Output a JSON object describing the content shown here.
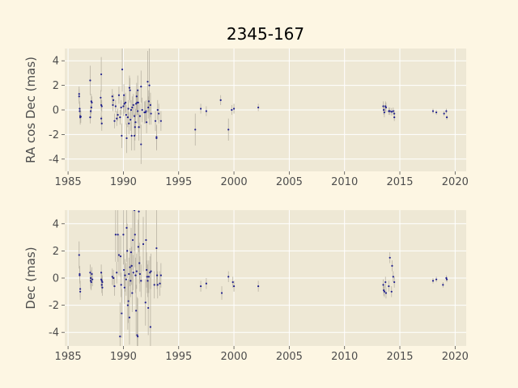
{
  "title": "2345-167",
  "colors": {
    "figure_bg": "#fdf6e3",
    "axes_bg": "#eee8d5",
    "grid": "#ffffff",
    "marker": "#1f1f8c",
    "errorbar": "#b9b3a4",
    "tick_text": "#4d4d4d"
  },
  "chart_data": [
    {
      "type": "scatter",
      "ylabel": "RA cos Dec (mas)",
      "xlim": [
        1984.7,
        2021
      ],
      "ylim": [
        -5,
        5
      ],
      "xticks": [
        "1985",
        "1990",
        "1995",
        "2000",
        "2005",
        "2010",
        "2015",
        "2020"
      ],
      "yticks": [
        "4",
        "2",
        "0",
        "-2",
        "-4"
      ],
      "grid": true,
      "errorbars": true,
      "points": [
        {
          "x": 1986.0,
          "y": 1.3,
          "err": 0.6
        },
        {
          "x": 1986.0,
          "y": 1.1,
          "err": 0.6
        },
        {
          "x": 1986.05,
          "y": 0.1,
          "err": 0.6
        },
        {
          "x": 1986.05,
          "y": -0.1,
          "err": 0.6
        },
        {
          "x": 1986.1,
          "y": -0.5,
          "err": 0.6
        },
        {
          "x": 1986.1,
          "y": -0.6,
          "err": 0.6
        },
        {
          "x": 1986.15,
          "y": -0.55,
          "err": 0.5
        },
        {
          "x": 1987.0,
          "y": 2.4,
          "err": 1.2
        },
        {
          "x": 1987.1,
          "y": 0.7,
          "err": 0.6
        },
        {
          "x": 1987.15,
          "y": 0.6,
          "err": 0.5
        },
        {
          "x": 1987.1,
          "y": 0.2,
          "err": 0.5
        },
        {
          "x": 1987.05,
          "y": -0.1,
          "err": 0.5
        },
        {
          "x": 1987.0,
          "y": -0.6,
          "err": 0.5
        },
        {
          "x": 1988.0,
          "y": 2.9,
          "err": 1.4
        },
        {
          "x": 1987.95,
          "y": 1.0,
          "err": 0.6
        },
        {
          "x": 1988.0,
          "y": 0.4,
          "err": 0.5
        },
        {
          "x": 1988.05,
          "y": 0.3,
          "err": 0.5
        },
        {
          "x": 1988.0,
          "y": -0.7,
          "err": 0.5
        },
        {
          "x": 1988.05,
          "y": -1.1,
          "err": 0.6
        },
        {
          "x": 1989.0,
          "y": 1.1,
          "err": 0.6
        },
        {
          "x": 1989.05,
          "y": 0.4,
          "err": 0.5
        },
        {
          "x": 1989.1,
          "y": 0.8,
          "err": 0.5
        },
        {
          "x": 1989.2,
          "y": -0.9,
          "err": 0.6
        },
        {
          "x": 1989.3,
          "y": 0.3,
          "err": 0.5
        },
        {
          "x": 1989.4,
          "y": -0.7,
          "err": 0.6
        },
        {
          "x": 1989.5,
          "y": -0.4,
          "err": 0.5
        },
        {
          "x": 1989.6,
          "y": 1.2,
          "err": 0.7
        },
        {
          "x": 1989.7,
          "y": -0.6,
          "err": 0.6
        },
        {
          "x": 1989.8,
          "y": 0.2,
          "err": 0.6
        },
        {
          "x": 1989.85,
          "y": -2.1,
          "err": 1.0
        },
        {
          "x": 1989.9,
          "y": 3.3,
          "err": 1.8
        },
        {
          "x": 1990.0,
          "y": 0.3,
          "err": 0.8
        },
        {
          "x": 1990.05,
          "y": 1.2,
          "err": 0.9
        },
        {
          "x": 1990.1,
          "y": 0.5,
          "err": 0.8
        },
        {
          "x": 1990.2,
          "y": 0.6,
          "err": 0.8
        },
        {
          "x": 1990.25,
          "y": -0.4,
          "err": 0.8
        },
        {
          "x": 1990.3,
          "y": -2.3,
          "err": 1.2
        },
        {
          "x": 1990.4,
          "y": -0.6,
          "err": 0.8
        },
        {
          "x": 1990.45,
          "y": 0.1,
          "err": 0.7
        },
        {
          "x": 1990.5,
          "y": -1.1,
          "err": 0.9
        },
        {
          "x": 1990.55,
          "y": 1.8,
          "err": 1.0
        },
        {
          "x": 1990.6,
          "y": 1.6,
          "err": 1.0
        },
        {
          "x": 1990.65,
          "y": -0.8,
          "err": 0.9
        },
        {
          "x": 1990.7,
          "y": 0.0,
          "err": 0.8
        },
        {
          "x": 1990.75,
          "y": -2.1,
          "err": 1.2
        },
        {
          "x": 1990.8,
          "y": 0.2,
          "err": 0.9
        },
        {
          "x": 1990.9,
          "y": 0.4,
          "err": 0.9
        },
        {
          "x": 1991.0,
          "y": -0.5,
          "err": 1.0
        },
        {
          "x": 1991.0,
          "y": -2.1,
          "err": 1.2
        },
        {
          "x": 1991.05,
          "y": -1.4,
          "err": 1.1
        },
        {
          "x": 1991.1,
          "y": -1.0,
          "err": 1.1
        },
        {
          "x": 1991.15,
          "y": 0.5,
          "err": 1.0
        },
        {
          "x": 1991.2,
          "y": 1.1,
          "err": 1.1
        },
        {
          "x": 1991.25,
          "y": 0.6,
          "err": 1.0
        },
        {
          "x": 1991.3,
          "y": 1.6,
          "err": 1.2
        },
        {
          "x": 1991.3,
          "y": -0.1,
          "err": 1.0
        },
        {
          "x": 1991.35,
          "y": 0.6,
          "err": 1.0
        },
        {
          "x": 1991.4,
          "y": -1.4,
          "err": 1.1
        },
        {
          "x": 1991.5,
          "y": -0.5,
          "err": 1.0
        },
        {
          "x": 1991.6,
          "y": 1.9,
          "err": 1.3
        },
        {
          "x": 1991.6,
          "y": -2.8,
          "err": 1.6
        },
        {
          "x": 1991.7,
          "y": 0.0,
          "err": 1.0
        },
        {
          "x": 1991.9,
          "y": -0.2,
          "err": 0.9
        },
        {
          "x": 1992.0,
          "y": -0.2,
          "err": 0.9
        },
        {
          "x": 1992.05,
          "y": -0.1,
          "err": 0.9
        },
        {
          "x": 1992.1,
          "y": -1.0,
          "err": 0.9
        },
        {
          "x": 1992.2,
          "y": 2.3,
          "err": 2.5
        },
        {
          "x": 1992.25,
          "y": 0.2,
          "err": 0.9
        },
        {
          "x": 1992.3,
          "y": 0.7,
          "err": 0.9
        },
        {
          "x": 1992.35,
          "y": 2.0,
          "err": 3.2
        },
        {
          "x": 1992.45,
          "y": 0.4,
          "err": 1.0
        },
        {
          "x": 1992.5,
          "y": -0.3,
          "err": 0.9
        },
        {
          "x": 1992.9,
          "y": -0.9,
          "err": 0.8
        },
        {
          "x": 1993.0,
          "y": -2.2,
          "err": 1.0
        },
        {
          "x": 1993.0,
          "y": -2.3,
          "err": 1.0
        },
        {
          "x": 1993.1,
          "y": 0.0,
          "err": 0.8
        },
        {
          "x": 1993.2,
          "y": -0.3,
          "err": 0.8
        },
        {
          "x": 1993.4,
          "y": -0.9,
          "err": 0.8
        },
        {
          "x": 1996.5,
          "y": -1.6,
          "err": 1.3
        },
        {
          "x": 1997.0,
          "y": 0.1,
          "err": 0.4
        },
        {
          "x": 1997.5,
          "y": -0.1,
          "err": 0.4
        },
        {
          "x": 1998.8,
          "y": 0.8,
          "err": 0.4
        },
        {
          "x": 1999.5,
          "y": -1.6,
          "err": 0.9
        },
        {
          "x": 1999.8,
          "y": 0.0,
          "err": 0.4
        },
        {
          "x": 2000.0,
          "y": 0.1,
          "err": 0.4
        },
        {
          "x": 2002.2,
          "y": 0.2,
          "err": 0.3
        },
        {
          "x": 2013.5,
          "y": 0.3,
          "err": 0.4
        },
        {
          "x": 2013.55,
          "y": 0.0,
          "err": 0.4
        },
        {
          "x": 2013.6,
          "y": -0.2,
          "err": 0.4
        },
        {
          "x": 2013.7,
          "y": 0.3,
          "err": 0.4
        },
        {
          "x": 2013.75,
          "y": 0.2,
          "err": 0.4
        },
        {
          "x": 2014.0,
          "y": -0.1,
          "err": 0.3
        },
        {
          "x": 2014.1,
          "y": -0.1,
          "err": 0.3
        },
        {
          "x": 2014.25,
          "y": -0.15,
          "err": 0.3
        },
        {
          "x": 2014.4,
          "y": -0.1,
          "err": 0.3
        },
        {
          "x": 2014.5,
          "y": -0.3,
          "err": 0.3
        },
        {
          "x": 2014.5,
          "y": -0.6,
          "err": 0.3
        },
        {
          "x": 2018.0,
          "y": -0.1,
          "err": 0.2
        },
        {
          "x": 2018.3,
          "y": -0.2,
          "err": 0.2
        },
        {
          "x": 2019.0,
          "y": -0.3,
          "err": 0.2
        },
        {
          "x": 2019.2,
          "y": -0.1,
          "err": 0.2
        },
        {
          "x": 2019.25,
          "y": -0.6,
          "err": 0.2
        }
      ]
    },
    {
      "type": "scatter",
      "ylabel": "Dec (mas)",
      "xlim": [
        1984.7,
        2021
      ],
      "ylim": [
        -5,
        5
      ],
      "xticks": [
        "1985",
        "1990",
        "1995",
        "2000",
        "2005",
        "2010",
        "2015",
        "2020"
      ],
      "yticks": [
        "4",
        "2",
        "0",
        "-2",
        "-4"
      ],
      "grid": true,
      "errorbars": true,
      "points": [
        {
          "x": 1986.0,
          "y": 1.7,
          "err": 1.0
        },
        {
          "x": 1986.05,
          "y": 0.3,
          "err": 0.6
        },
        {
          "x": 1986.05,
          "y": 0.2,
          "err": 0.6
        },
        {
          "x": 1986.1,
          "y": -0.8,
          "err": 0.6
        },
        {
          "x": 1986.1,
          "y": -1.0,
          "err": 0.6
        },
        {
          "x": 1987.0,
          "y": 0.4,
          "err": 0.6
        },
        {
          "x": 1987.05,
          "y": 0.0,
          "err": 0.6
        },
        {
          "x": 1987.05,
          "y": -0.2,
          "err": 0.6
        },
        {
          "x": 1987.1,
          "y": -0.3,
          "err": 0.6
        },
        {
          "x": 1987.15,
          "y": 0.3,
          "err": 0.5
        },
        {
          "x": 1987.2,
          "y": -0.1,
          "err": 0.5
        },
        {
          "x": 1988.0,
          "y": 0.4,
          "err": 0.6
        },
        {
          "x": 1988.0,
          "y": -0.1,
          "err": 0.6
        },
        {
          "x": 1988.05,
          "y": -0.2,
          "err": 0.6
        },
        {
          "x": 1988.05,
          "y": -0.5,
          "err": 0.6
        },
        {
          "x": 1988.1,
          "y": -0.7,
          "err": 0.6
        },
        {
          "x": 1988.1,
          "y": -0.3,
          "err": 0.5
        },
        {
          "x": 1989.0,
          "y": 0.1,
          "err": 0.6
        },
        {
          "x": 1989.1,
          "y": 0.0,
          "err": 0.6
        },
        {
          "x": 1989.2,
          "y": -0.6,
          "err": 0.7
        },
        {
          "x": 1989.3,
          "y": 3.2,
          "err": 2.0
        },
        {
          "x": 1989.4,
          "y": 0.4,
          "err": 0.8
        },
        {
          "x": 1989.5,
          "y": 3.2,
          "err": 2.0
        },
        {
          "x": 1989.6,
          "y": 1.7,
          "err": 1.5
        },
        {
          "x": 1989.7,
          "y": -4.3,
          "err": 2.5
        },
        {
          "x": 1989.75,
          "y": 1.6,
          "err": 1.5
        },
        {
          "x": 1989.8,
          "y": -0.5,
          "err": 0.9
        },
        {
          "x": 1989.85,
          "y": -2.6,
          "err": 1.8
        },
        {
          "x": 1990.0,
          "y": 3.2,
          "err": 2.2
        },
        {
          "x": 1990.05,
          "y": 0.6,
          "err": 1.2
        },
        {
          "x": 1990.1,
          "y": -0.7,
          "err": 1.2
        },
        {
          "x": 1990.15,
          "y": 0.2,
          "err": 1.2
        },
        {
          "x": 1990.25,
          "y": -0.1,
          "err": 1.2
        },
        {
          "x": 1990.3,
          "y": 3.7,
          "err": 2.5
        },
        {
          "x": 1990.35,
          "y": 2.0,
          "err": 2.0
        },
        {
          "x": 1990.4,
          "y": -2.0,
          "err": 1.8
        },
        {
          "x": 1990.45,
          "y": -1.7,
          "err": 1.6
        },
        {
          "x": 1990.5,
          "y": 0.3,
          "err": 1.2
        },
        {
          "x": 1990.55,
          "y": -2.9,
          "err": 2.0
        },
        {
          "x": 1990.6,
          "y": 0.8,
          "err": 1.4
        },
        {
          "x": 1990.65,
          "y": -0.2,
          "err": 1.2
        },
        {
          "x": 1990.7,
          "y": 1.9,
          "err": 1.8
        },
        {
          "x": 1990.75,
          "y": 0.9,
          "err": 1.4
        },
        {
          "x": 1990.8,
          "y": -1.1,
          "err": 1.4
        },
        {
          "x": 1990.85,
          "y": 2.8,
          "err": 2.2
        },
        {
          "x": 1990.9,
          "y": 0.4,
          "err": 1.3
        },
        {
          "x": 1991.0,
          "y": 5.0,
          "err": 3.0
        },
        {
          "x": 1991.05,
          "y": 3.2,
          "err": 2.4
        },
        {
          "x": 1991.1,
          "y": 0.2,
          "err": 1.3
        },
        {
          "x": 1991.15,
          "y": -2.4,
          "err": 1.9
        },
        {
          "x": 1991.2,
          "y": 0.5,
          "err": 1.3
        },
        {
          "x": 1991.25,
          "y": -4.2,
          "err": 2.8
        },
        {
          "x": 1991.3,
          "y": -4.3,
          "err": 2.8
        },
        {
          "x": 1991.35,
          "y": 2.3,
          "err": 2.0
        },
        {
          "x": 1991.4,
          "y": 4.9,
          "err": 3.0
        },
        {
          "x": 1991.45,
          "y": 1.1,
          "err": 1.5
        },
        {
          "x": 1991.5,
          "y": 0.3,
          "err": 1.3
        },
        {
          "x": 1991.6,
          "y": -0.2,
          "err": 1.2
        },
        {
          "x": 1991.8,
          "y": 2.5,
          "err": 2.0
        },
        {
          "x": 1992.0,
          "y": -1.8,
          "err": 1.7
        },
        {
          "x": 1992.05,
          "y": 2.8,
          "err": 2.3
        },
        {
          "x": 1992.1,
          "y": 0.6,
          "err": 1.3
        },
        {
          "x": 1992.15,
          "y": 0.1,
          "err": 1.2
        },
        {
          "x": 1992.2,
          "y": -0.2,
          "err": 1.2
        },
        {
          "x": 1992.25,
          "y": -2.2,
          "err": 2.0
        },
        {
          "x": 1992.3,
          "y": 0.1,
          "err": 1.2
        },
        {
          "x": 1992.4,
          "y": 0.4,
          "err": 1.2
        },
        {
          "x": 1992.45,
          "y": -3.6,
          "err": 2.8
        },
        {
          "x": 1992.5,
          "y": 0.5,
          "err": 1.3
        },
        {
          "x": 1992.8,
          "y": -0.5,
          "err": 1.0
        },
        {
          "x": 1993.0,
          "y": 2.2,
          "err": 2.8
        },
        {
          "x": 1993.05,
          "y": 0.2,
          "err": 1.0
        },
        {
          "x": 1993.1,
          "y": -0.5,
          "err": 1.0
        },
        {
          "x": 1993.3,
          "y": -0.4,
          "err": 0.9
        },
        {
          "x": 1993.4,
          "y": 0.2,
          "err": 0.9
        },
        {
          "x": 1997.0,
          "y": -0.6,
          "err": 0.4
        },
        {
          "x": 1997.5,
          "y": -0.4,
          "err": 0.4
        },
        {
          "x": 1998.9,
          "y": -1.1,
          "err": 0.5
        },
        {
          "x": 1999.5,
          "y": 0.1,
          "err": 0.4
        },
        {
          "x": 1999.9,
          "y": -0.3,
          "err": 0.4
        },
        {
          "x": 2000.0,
          "y": -0.6,
          "err": 0.4
        },
        {
          "x": 2002.2,
          "y": -0.6,
          "err": 0.4
        },
        {
          "x": 2013.5,
          "y": -0.5,
          "err": 0.4
        },
        {
          "x": 2013.55,
          "y": -0.9,
          "err": 0.4
        },
        {
          "x": 2013.6,
          "y": -1.0,
          "err": 0.4
        },
        {
          "x": 2013.7,
          "y": -0.3,
          "err": 0.4
        },
        {
          "x": 2013.75,
          "y": -1.1,
          "err": 0.4
        },
        {
          "x": 2014.0,
          "y": -0.6,
          "err": 0.4
        },
        {
          "x": 2014.1,
          "y": 1.5,
          "err": 0.4
        },
        {
          "x": 2014.25,
          "y": -1.0,
          "err": 0.4
        },
        {
          "x": 2014.3,
          "y": 0.9,
          "err": 0.4
        },
        {
          "x": 2014.4,
          "y": 0.1,
          "err": 0.4
        },
        {
          "x": 2014.5,
          "y": -0.3,
          "err": 0.4
        },
        {
          "x": 2018.0,
          "y": -0.2,
          "err": 0.2
        },
        {
          "x": 2018.3,
          "y": -0.1,
          "err": 0.2
        },
        {
          "x": 2018.9,
          "y": -0.5,
          "err": 0.2
        },
        {
          "x": 2019.2,
          "y": 0.0,
          "err": 0.2
        },
        {
          "x": 2019.25,
          "y": -0.1,
          "err": 0.2
        }
      ]
    }
  ]
}
